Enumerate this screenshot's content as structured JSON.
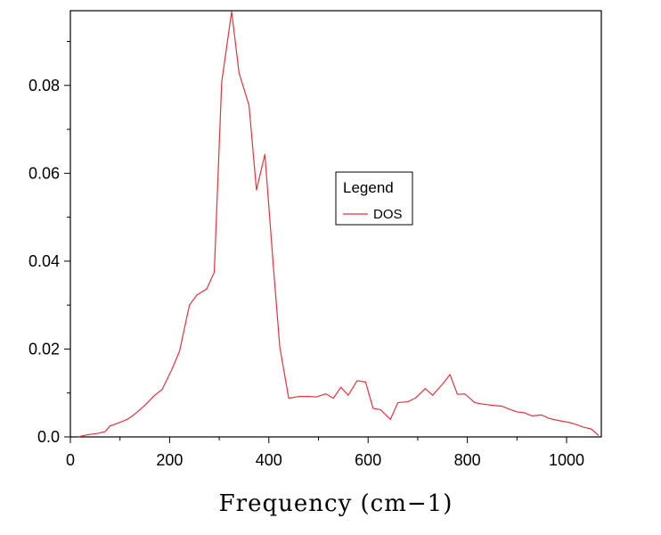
{
  "chart_data": {
    "type": "line",
    "title": "",
    "xlabel": "Frequency (cm−1)",
    "ylabel": "",
    "xlim": [
      0,
      1070
    ],
    "ylim": [
      0,
      0.097
    ],
    "x_ticks": [
      0,
      200,
      400,
      600,
      800,
      1000
    ],
    "x_tick_labels": [
      "0",
      "200",
      "400",
      "600",
      "800",
      "1000"
    ],
    "y_ticks": [
      0,
      0.02,
      0.04,
      0.06,
      0.08
    ],
    "y_tick_labels": [
      "0.0",
      "0.02",
      "0.04",
      "0.06",
      "0.08"
    ],
    "grid": false,
    "legend": {
      "title": "Legend",
      "placement": "center-right"
    },
    "series": [
      {
        "name": "DOS",
        "color": "#e8323c",
        "x": [
          15,
          35,
          55,
          70,
          80,
          100,
          115,
          130,
          150,
          170,
          185,
          205,
          220,
          240,
          255,
          275,
          290,
          305,
          325,
          340,
          360,
          375,
          392,
          410,
          422,
          440,
          460,
          480,
          495,
          515,
          530,
          545,
          560,
          578,
          595,
          610,
          625,
          645,
          660,
          680,
          695,
          715,
          730,
          750,
          765,
          780,
          795,
          815,
          830,
          850,
          870,
          885,
          900,
          915,
          930,
          950,
          965,
          985,
          1005,
          1020,
          1035,
          1050,
          1065
        ],
        "y": [
          0.0,
          0.0005,
          0.0008,
          0.0012,
          0.0025,
          0.0033,
          0.004,
          0.0052,
          0.0072,
          0.0095,
          0.0108,
          0.0155,
          0.0195,
          0.03,
          0.0323,
          0.0337,
          0.0375,
          0.0808,
          0.0968,
          0.0828,
          0.0755,
          0.0562,
          0.0643,
          0.0375,
          0.0205,
          0.0088,
          0.0092,
          0.0092,
          0.0091,
          0.0098,
          0.0088,
          0.0113,
          0.0095,
          0.0128,
          0.0125,
          0.0065,
          0.0062,
          0.004,
          0.0078,
          0.008,
          0.0088,
          0.011,
          0.0095,
          0.012,
          0.0142,
          0.0097,
          0.0098,
          0.0078,
          0.0075,
          0.0072,
          0.007,
          0.0063,
          0.0057,
          0.0055,
          0.0048,
          0.005,
          0.0042,
          0.0037,
          0.0033,
          0.0028,
          0.0022,
          0.0018,
          0.0003
        ]
      }
    ]
  }
}
